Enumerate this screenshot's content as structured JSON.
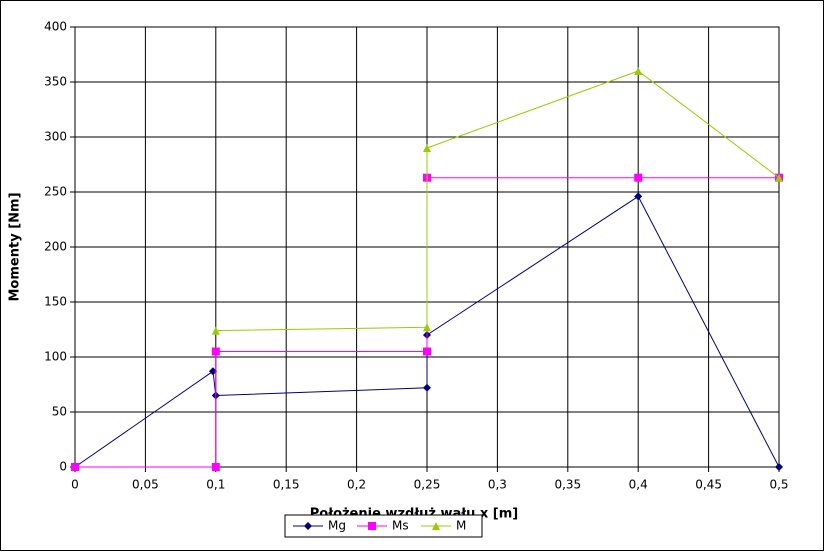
{
  "chart_data": {
    "type": "line",
    "x_label": "Położenie wzdłuż wału x [m]",
    "y_label": "Momenty [Nm]",
    "xlim": [
      0,
      0.5
    ],
    "xticks": [
      0,
      {
        "value": 0.05,
        "label": "0,05"
      },
      {
        "value": 0.1,
        "label": "0,1"
      },
      {
        "value": 0.15,
        "label": "0,15"
      },
      {
        "value": 0.2,
        "label": "0,2"
      },
      {
        "value": 0.25,
        "label": "0,25"
      },
      {
        "value": 0.3,
        "label": "0,3"
      },
      {
        "value": 0.35,
        "label": "0,35"
      },
      {
        "value": 0.4,
        "label": "0,4"
      },
      {
        "value": 0.45,
        "label": "0,45"
      },
      {
        "value": 0.5,
        "label": "0,5"
      }
    ],
    "ylim": [
      0,
      400
    ],
    "yticks": [
      0,
      50,
      100,
      150,
      200,
      250,
      300,
      350,
      400
    ],
    "grid": true,
    "legend": "bottom",
    "series": [
      {
        "name": "Mg",
        "color": "#000080",
        "marker": "diamond",
        "x": [
          0,
          0.098,
          0.1,
          0.25,
          0.25,
          0.4,
          0.5
        ],
        "values": [
          0,
          87,
          65,
          72,
          120,
          246,
          0
        ]
      },
      {
        "name": "Ms",
        "color": "#ff00ff",
        "marker": "square",
        "x": [
          0,
          0.1,
          0.1,
          0.25,
          0.25,
          0.4,
          0.5
        ],
        "values": [
          0,
          0,
          105,
          105,
          263,
          263,
          263
        ]
      },
      {
        "name": "M",
        "color": "#99cc00",
        "marker": "triangle",
        "x": [
          0.1,
          0.25,
          0.25,
          0.4,
          0.5
        ],
        "values": [
          124,
          127,
          290,
          360,
          263
        ]
      }
    ]
  }
}
